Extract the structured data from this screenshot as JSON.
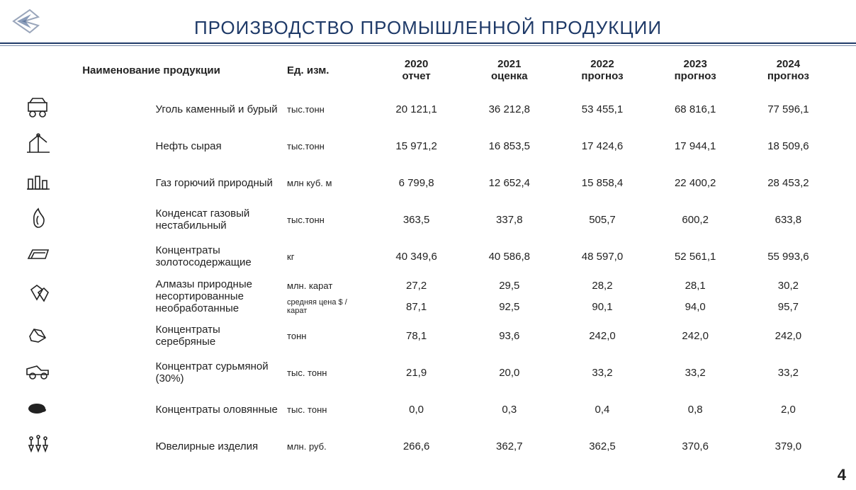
{
  "page": {
    "title": "ПРОИЗВОДСТВО ПРОМЫШЛЕННОЙ ПРОДУКЦИИ",
    "page_number": "4",
    "colors": {
      "title_color": "#1f3a68",
      "rule_color": "#1f3a68",
      "text_color": "#222222",
      "background": "#ffffff"
    },
    "header": {
      "name_col": "Наименование продукции",
      "unit_col": "Ед. изм.",
      "years": [
        {
          "year": "2020",
          "sub": "отчет"
        },
        {
          "year": "2021",
          "sub": "оценка"
        },
        {
          "year": "2022",
          "sub": "прогноз"
        },
        {
          "year": "2023",
          "sub": "прогноз"
        },
        {
          "year": "2024",
          "sub": "прогноз"
        }
      ]
    },
    "rows": [
      {
        "icon": "coal-cart",
        "name": "Уголь каменный и бурый",
        "unit": "тыс.тонн",
        "v": [
          "20 121,1",
          "36 212,8",
          "53 455,1",
          "68 816,1",
          "77 596,1"
        ]
      },
      {
        "icon": "oil-pump",
        "name": "Нефть сырая",
        "unit": "тыс.тонн",
        "v": [
          "15 971,2",
          "16 853,5",
          "17 424,6",
          "17 944,1",
          "18 509,6"
        ]
      },
      {
        "icon": "gas-plant",
        "name": "Газ горючий природный",
        "unit": "млн куб. м",
        "v": [
          "6 799,8",
          "12 652,4",
          "15 858,4",
          "22 400,2",
          "28 453,2"
        ]
      },
      {
        "icon": "flame",
        "name": "Конденсат газовый нестабильный",
        "unit": "тыс.тонн",
        "v": [
          "363,5",
          "337,8",
          "505,7",
          "600,2",
          "633,8"
        ]
      },
      {
        "icon": "gold-bar",
        "name": "Концентраты золотосодержащие",
        "unit": "кг",
        "v": [
          "40 349,6",
          "40 586,8",
          "48 597,0",
          "52 561,1",
          "55 993,6"
        ]
      },
      {
        "icon": "diamonds",
        "name": "Алмазы природные несортированные необработанные",
        "subrows": [
          {
            "unit": "млн. карат",
            "v": [
              "27,2",
              "29,5",
              "28,2",
              "28,1",
              "30,2"
            ]
          },
          {
            "unit": "средняя цена $ / карат",
            "v": [
              "87,1",
              "92,5",
              "90,1",
              "94,0",
              "95,7"
            ]
          }
        ]
      },
      {
        "icon": "silver-ore",
        "name": "Концентраты серебряные",
        "unit": "тонн",
        "v": [
          "78,1",
          "93,6",
          "242,0",
          "242,0",
          "242,0"
        ]
      },
      {
        "icon": "dump-truck",
        "name": "Концентрат сурьмяной (30%)",
        "unit": "тыс. тонн",
        "v": [
          "21,9",
          "20,0",
          "33,2",
          "33,2",
          "33,2"
        ]
      },
      {
        "icon": "tin-ore",
        "name": "Концентраты оловянные",
        "unit": "тыс. тонн",
        "v": [
          "0,0",
          "0,3",
          "0,4",
          "0,8",
          "2,0"
        ]
      },
      {
        "icon": "jewelry",
        "name": "Ювелирные изделия",
        "unit": "млн. руб.",
        "v": [
          "266,6",
          "362,7",
          "362,5",
          "370,6",
          "379,0"
        ]
      }
    ]
  }
}
